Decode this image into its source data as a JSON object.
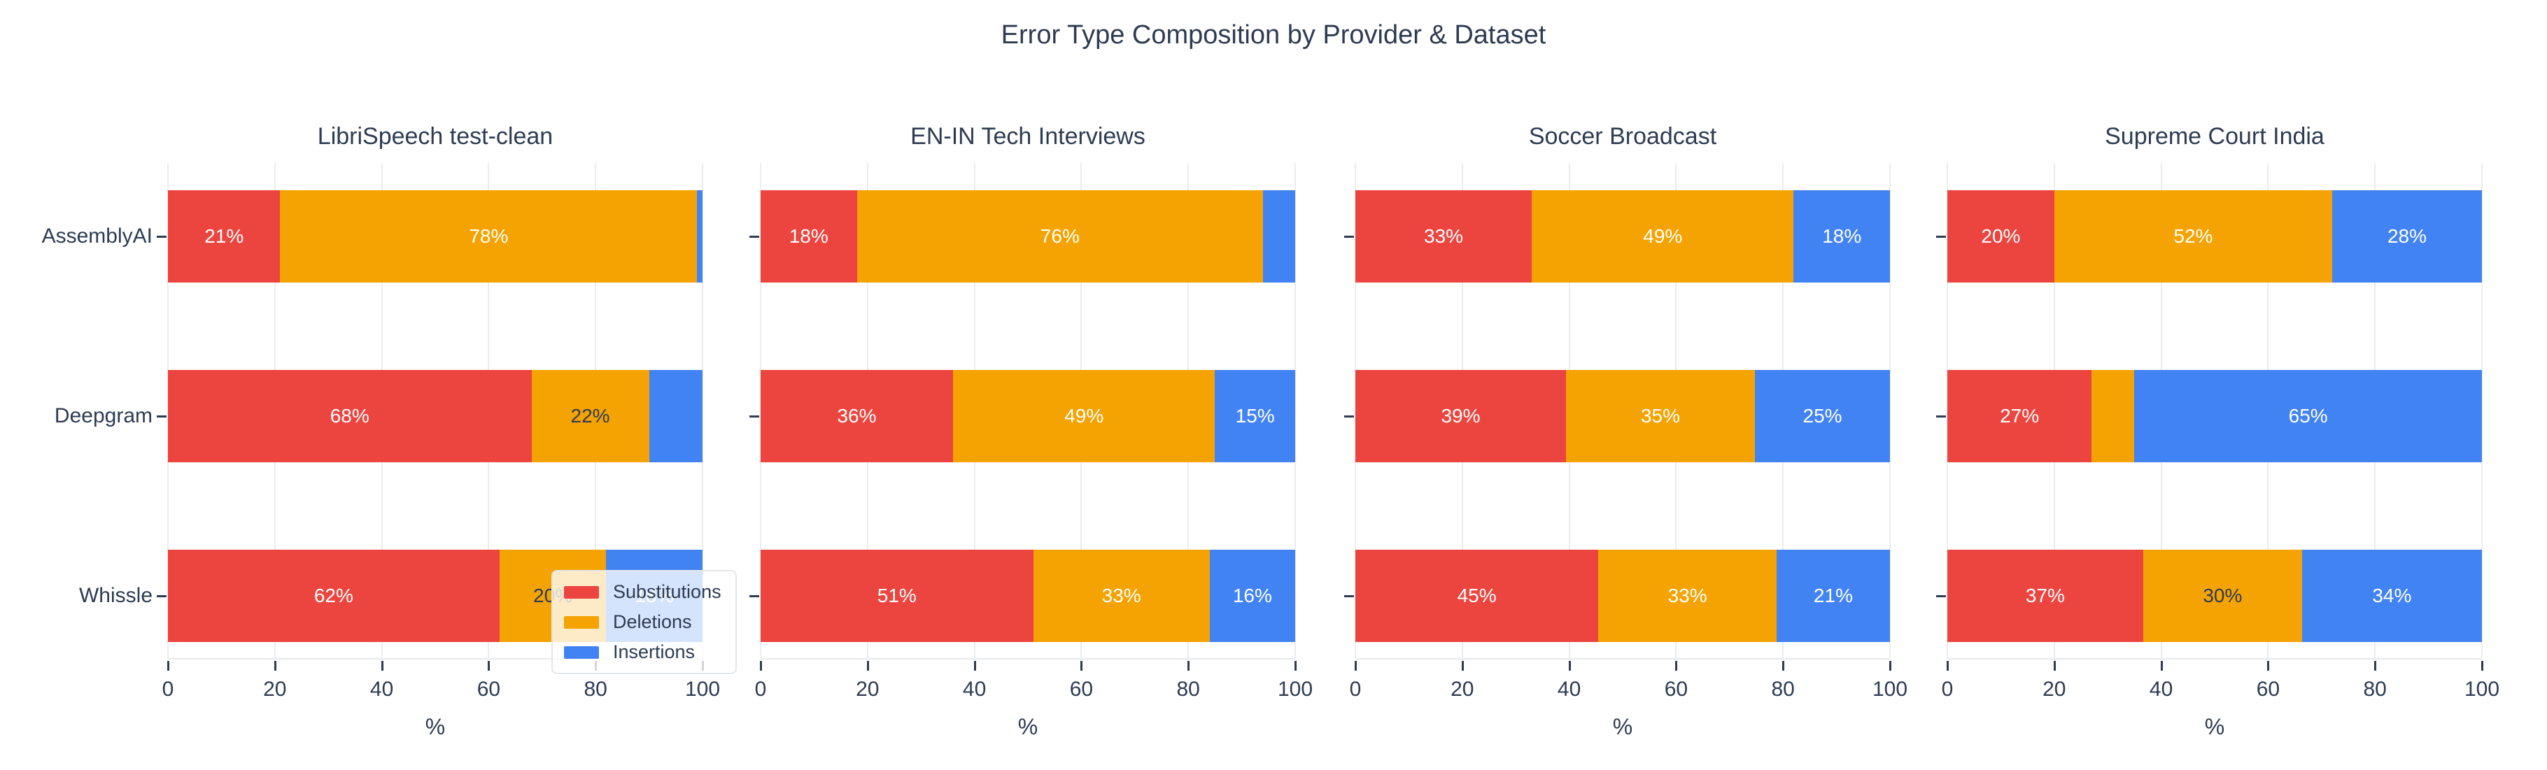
{
  "title": "Error Type Composition by Provider & Dataset",
  "colors": {
    "substitutions": "#EC4540",
    "deletions": "#F5A302",
    "insertions": "#4283F4",
    "text_dark": "#2E3B52",
    "text_light": "#FFFFFF",
    "grid": "#EBECF0",
    "axis_line": "#E6E8EC"
  },
  "legend": {
    "items": [
      {
        "label": "Substitutions",
        "color_key": "substitutions"
      },
      {
        "label": "Deletions",
        "color_key": "deletions"
      },
      {
        "label": "Insertions",
        "color_key": "insertions"
      }
    ]
  },
  "x_axis": {
    "ticks": [
      "0",
      "20",
      "40",
      "60",
      "80",
      "100"
    ],
    "title": "%"
  },
  "providers": [
    "AssemblyAI",
    "Deepgram",
    "Whissle"
  ],
  "chart_data": {
    "type": "bar",
    "orientation": "horizontal",
    "stacked": true,
    "unit": "%",
    "xlim": [
      0,
      100
    ],
    "grid": true,
    "legend_position": "overlay bottom-right of first subplot",
    "series_names": [
      "Substitutions",
      "Deletions",
      "Insertions"
    ],
    "subplots": [
      {
        "title": "LibriSpeech test-clean",
        "rows": [
          {
            "provider": "AssemblyAI",
            "segments": [
              {
                "series": "Substitutions",
                "value": 21,
                "label": "21%",
                "label_color": "light"
              },
              {
                "series": "Deletions",
                "value": 78,
                "label": "78%",
                "label_color": "light"
              },
              {
                "series": "Insertions",
                "value": 1,
                "label": null,
                "label_color": "light"
              }
            ]
          },
          {
            "provider": "Deepgram",
            "segments": [
              {
                "series": "Substitutions",
                "value": 68,
                "label": "68%",
                "label_color": "light"
              },
              {
                "series": "Deletions",
                "value": 22,
                "label": "22%",
                "label_color": "dark"
              },
              {
                "series": "Insertions",
                "value": 10,
                "label": null,
                "label_color": "light"
              }
            ]
          },
          {
            "provider": "Whissle",
            "segments": [
              {
                "series": "Substitutions",
                "value": 62,
                "label": "62%",
                "label_color": "light"
              },
              {
                "series": "Deletions",
                "value": 20,
                "label": "20%",
                "label_color": "dark"
              },
              {
                "series": "Insertions",
                "value": 18,
                "label": "18%",
                "label_color": "light"
              }
            ]
          }
        ]
      },
      {
        "title": "EN-IN Tech Interviews",
        "rows": [
          {
            "provider": "AssemblyAI",
            "segments": [
              {
                "series": "Substitutions",
                "value": 18,
                "label": "18%",
                "label_color": "light"
              },
              {
                "series": "Deletions",
                "value": 76,
                "label": "76%",
                "label_color": "light"
              },
              {
                "series": "Insertions",
                "value": 6,
                "label": null,
                "label_color": "light"
              }
            ]
          },
          {
            "provider": "Deepgram",
            "segments": [
              {
                "series": "Substitutions",
                "value": 36,
                "label": "36%",
                "label_color": "light"
              },
              {
                "series": "Deletions",
                "value": 49,
                "label": "49%",
                "label_color": "light"
              },
              {
                "series": "Insertions",
                "value": 15,
                "label": "15%",
                "label_color": "light"
              }
            ]
          },
          {
            "provider": "Whissle",
            "segments": [
              {
                "series": "Substitutions",
                "value": 51,
                "label": "51%",
                "label_color": "light"
              },
              {
                "series": "Deletions",
                "value": 33,
                "label": "33%",
                "label_color": "light"
              },
              {
                "series": "Insertions",
                "value": 16,
                "label": "16%",
                "label_color": "light"
              }
            ]
          }
        ]
      },
      {
        "title": "Soccer Broadcast",
        "rows": [
          {
            "provider": "AssemblyAI",
            "segments": [
              {
                "series": "Substitutions",
                "value": 33,
                "label": "33%",
                "label_color": "light"
              },
              {
                "series": "Deletions",
                "value": 49,
                "label": "49%",
                "label_color": "light"
              },
              {
                "series": "Insertions",
                "value": 18,
                "label": "18%",
                "label_color": "light"
              }
            ]
          },
          {
            "provider": "Deepgram",
            "segments": [
              {
                "series": "Substitutions",
                "value": 39,
                "label": "39%",
                "label_color": "light"
              },
              {
                "series": "Deletions",
                "value": 35,
                "label": "35%",
                "label_color": "light"
              },
              {
                "series": "Insertions",
                "value": 25,
                "label": "25%",
                "label_color": "light"
              }
            ]
          },
          {
            "provider": "Whissle",
            "segments": [
              {
                "series": "Substitutions",
                "value": 45,
                "label": "45%",
                "label_color": "light"
              },
              {
                "series": "Deletions",
                "value": 33,
                "label": "33%",
                "label_color": "light"
              },
              {
                "series": "Insertions",
                "value": 21,
                "label": "21%",
                "label_color": "light"
              }
            ]
          }
        ]
      },
      {
        "title": "Supreme Court India",
        "rows": [
          {
            "provider": "AssemblyAI",
            "segments": [
              {
                "series": "Substitutions",
                "value": 20,
                "label": "20%",
                "label_color": "light"
              },
              {
                "series": "Deletions",
                "value": 52,
                "label": "52%",
                "label_color": "light"
              },
              {
                "series": "Insertions",
                "value": 28,
                "label": "28%",
                "label_color": "light"
              }
            ]
          },
          {
            "provider": "Deepgram",
            "segments": [
              {
                "series": "Substitutions",
                "value": 27,
                "label": "27%",
                "label_color": "light"
              },
              {
                "series": "Deletions",
                "value": 8,
                "label": null,
                "label_color": "light"
              },
              {
                "series": "Insertions",
                "value": 65,
                "label": "65%",
                "label_color": "light"
              }
            ]
          },
          {
            "provider": "Whissle",
            "segments": [
              {
                "series": "Substitutions",
                "value": 37,
                "label": "37%",
                "label_color": "light"
              },
              {
                "series": "Deletions",
                "value": 30,
                "label": "30%",
                "label_color": "dark"
              },
              {
                "series": "Insertions",
                "value": 34,
                "label": "34%",
                "label_color": "light"
              }
            ]
          }
        ]
      }
    ]
  }
}
